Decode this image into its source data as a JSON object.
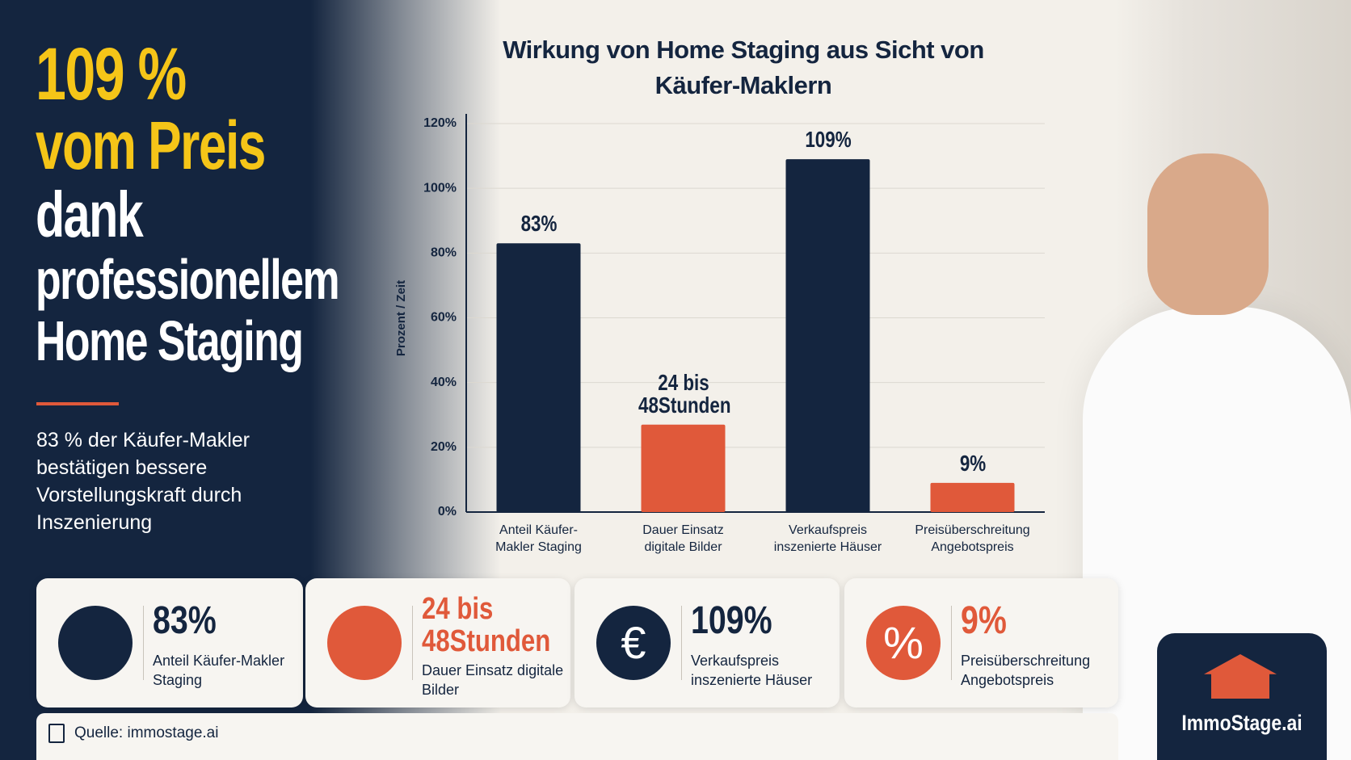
{
  "headline": {
    "highlight": [
      "109 %",
      "vom Preis"
    ],
    "lines": [
      "dank",
      "professionellem",
      "Home Staging"
    ]
  },
  "description": "83 % der Käufer-Makler bestätigen bessere Vorstellungskraft durch Inszenierung",
  "chart_data": {
    "type": "bar",
    "title": "Wirkung von Home Staging aus Sicht von Käufer-Maklern",
    "y_label": "Prozent / Zeit",
    "categories": [
      "Anteil Käufer-Makler Staging",
      "Dauer Einsatz digitale Bilder",
      "Verkaufspreis inszenierte Häuser",
      "Preisüberschreitung Angebotspreis"
    ],
    "values": [
      83,
      27,
      109,
      9
    ],
    "value_labels": [
      "83%",
      null,
      "109%",
      "9%"
    ],
    "annotations": [
      "24 bis 48Stunden"
    ],
    "colors": [
      "#14253f",
      "#e0593a",
      "#14253f",
      "#e0593a"
    ],
    "ylim": [
      0,
      120
    ],
    "yticks": [
      {
        "value": 0,
        "label": "0%"
      },
      {
        "value": 20,
        "label": "20%"
      },
      {
        "value": 40,
        "label": "40%"
      },
      {
        "value": 60,
        "label": "60%"
      },
      {
        "value": 80,
        "label": "80%"
      },
      {
        "value": 100,
        "label": "100%"
      },
      {
        "value": 120,
        "label": "120%"
      }
    ],
    "grid": true
  },
  "cards": [
    {
      "value": "83%",
      "label": "Anteil Käufer-Makler Staging",
      "color": "#14253f"
    },
    {
      "value": "24 bis 48Stunden",
      "label": "Dauer Einsatz digitale Bilder",
      "color": "#e0593a"
    },
    {
      "value": "109%",
      "label": "Verkaufspreis inszenierte Häuser",
      "color": "#14253f",
      "icon": "€"
    },
    {
      "value": "9%",
      "label": "Preisüberschreitung Angebotspreis",
      "color": "#e0593a",
      "icon": "%"
    }
  ],
  "source": "Quelle: immostage.ai",
  "logo": "ImmoStage.ai"
}
